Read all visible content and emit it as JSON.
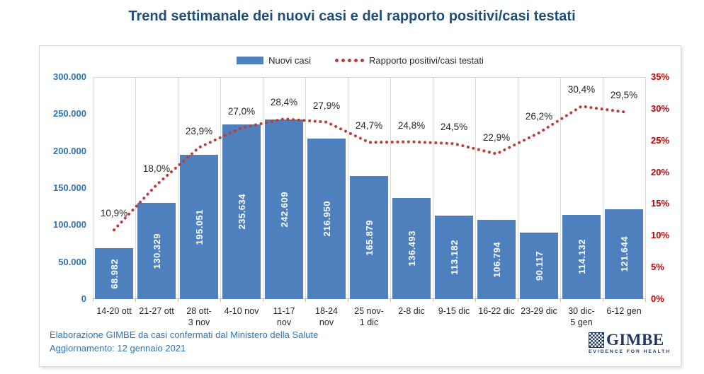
{
  "title": "Trend settimanale dei nuovi casi e del rapporto positivi/casi testati",
  "legend": {
    "bars": "Nuovi casi",
    "line": "Rapporto positivi/casi testati"
  },
  "footer": {
    "line1": "Elaborazione GIMBE da casi confermati dal Ministero della Salute",
    "line2": "Aggiornamento: 12 gennaio 2021"
  },
  "logo": {
    "name": "GIMBE",
    "tagline": "EVIDENCE FOR HEALTH"
  },
  "colors": {
    "title": "#1F4E79",
    "bar": "#4E80BD",
    "line": "#BF3B38",
    "left_axis": "#2E75B6",
    "right_axis": "#C00000",
    "gridline": "#D9D9D9",
    "axis_line": "#BFBFBF",
    "footer": "#2E75B6",
    "logo": "#1F3864"
  },
  "chart_data": {
    "type": "combo",
    "combo_types": [
      "bar",
      "line"
    ],
    "categories": [
      "14-20 ott",
      "21-27 ott",
      "28 ott-\n3 nov",
      "4-10 nov",
      "11-17\nnov",
      "18-24\nnov",
      "25 nov-\n1 dic",
      "2-8 dic",
      "9-15 dic",
      "16-22 dic",
      "23-29 dic",
      "30 dic-\n5 gen",
      "6-12 gen"
    ],
    "series": [
      {
        "name": "Nuovi casi",
        "type": "bar",
        "axis": "left",
        "color": "#4E80BD",
        "values": [
          68982,
          130329,
          195051,
          235634,
          242609,
          216950,
          165879,
          136493,
          113182,
          106794,
          90117,
          114132,
          121644
        ],
        "labels": [
          "68.982",
          "130.329",
          "195.051",
          "235.634",
          "242.609",
          "216.950",
          "165.879",
          "136.493",
          "113.182",
          "106.794",
          "90.117",
          "114.132",
          "121.644"
        ]
      },
      {
        "name": "Rapporto positivi/casi testati",
        "type": "line",
        "style": "dotted",
        "axis": "right",
        "color": "#BF3B38",
        "values": [
          10.9,
          18.0,
          23.9,
          27.0,
          28.4,
          27.9,
          24.7,
          24.8,
          24.5,
          22.9,
          26.2,
          30.4,
          29.5
        ],
        "labels": [
          "10,9%",
          "18,0%",
          "23,9%",
          "27,0%",
          "28,4%",
          "27,9%",
          "24,7%",
          "24,8%",
          "24,5%",
          "22,9%",
          "26,2%",
          "30,4%",
          "29,5%"
        ]
      }
    ],
    "left_axis": {
      "min": 0,
      "max": 300000,
      "ticks": [
        "300.000",
        "250.000",
        "200.000",
        "150.000",
        "100.000",
        "50.000",
        "0"
      ]
    },
    "right_axis": {
      "min": 0,
      "max": 35,
      "ticks": [
        "35%",
        "30%",
        "25%",
        "20%",
        "15%",
        "10%",
        "5%",
        "0%"
      ]
    },
    "grid": "vertical-only",
    "legend_position": "top-center"
  }
}
